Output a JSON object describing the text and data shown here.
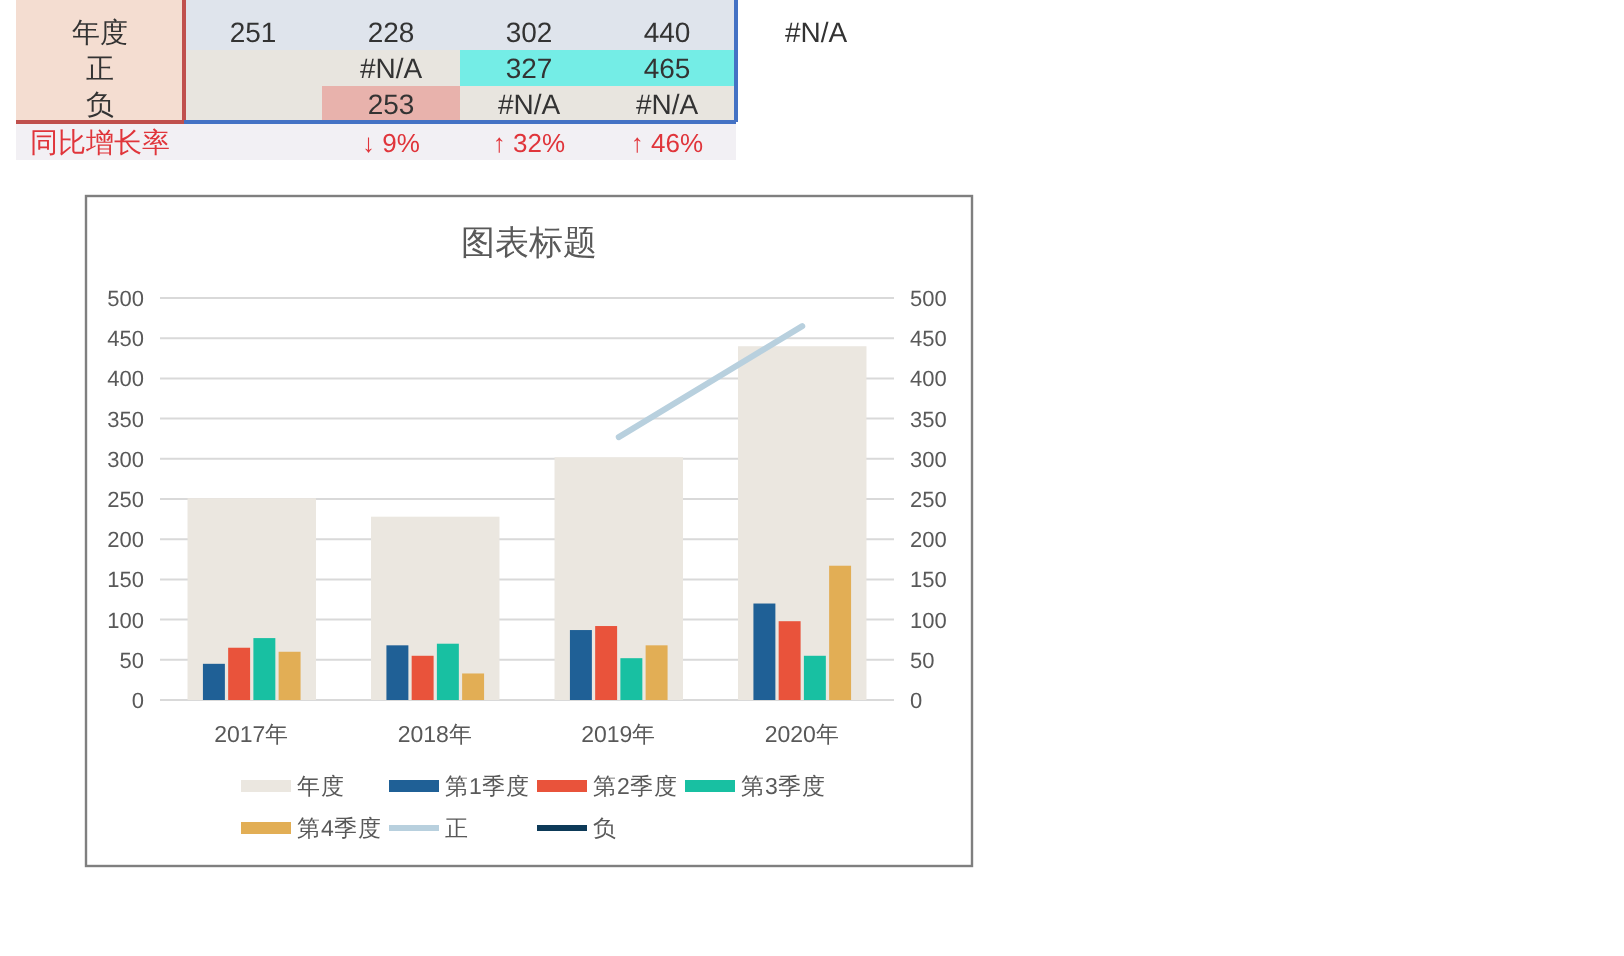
{
  "chart_data": {
    "type": "bar",
    "title": "图表标题",
    "categories": [
      "2017年",
      "2018年",
      "2019年",
      "2020年"
    ],
    "series": [
      {
        "name": "年度",
        "color": "#ebe7e0",
        "axis": "y2",
        "values": [
          251,
          228,
          302,
          440
        ]
      },
      {
        "name": "第1季度",
        "color": "#1f6096",
        "values": [
          45,
          68,
          87,
          120
        ]
      },
      {
        "name": "第2季度",
        "color": "#e9533b",
        "values": [
          65,
          55,
          92,
          98
        ]
      },
      {
        "name": "第3季度",
        "color": "#18c0a2",
        "values": [
          77,
          70,
          52,
          55
        ]
      },
      {
        "name": "第4季度",
        "color": "#e2ae55",
        "values": [
          60,
          33,
          68,
          167
        ]
      },
      {
        "name": "正",
        "type": "line",
        "color": "#b8d0de",
        "values": [
          null,
          null,
          327,
          465
        ]
      },
      {
        "name": "负",
        "type": "line",
        "color": "#0d3a58",
        "values": [
          null,
          null,
          null,
          null
        ]
      }
    ],
    "ylim": [
      0,
      500
    ],
    "yticks": [
      0,
      50,
      100,
      150,
      200,
      250,
      300,
      350,
      400,
      450,
      500
    ],
    "y2lim": [
      0,
      500
    ],
    "y2ticks": [
      0,
      50,
      100,
      150,
      200,
      250,
      300,
      350,
      400,
      450,
      500
    ],
    "grid": "y",
    "legend": "bottom",
    "annotations": [
      "年度",
      "251",
      "228",
      "302",
      "440",
      "#N/A",
      "正",
      "#N/A",
      "327",
      "465",
      "负",
      "253",
      "#N/A",
      "#N/A",
      "同比增长率",
      "↓ 9%",
      "↑ 32%",
      "↑ 46%"
    ]
  }
}
